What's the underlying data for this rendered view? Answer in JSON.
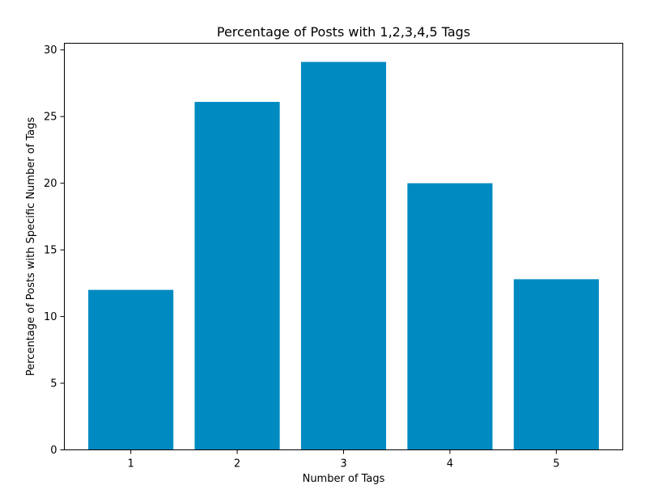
{
  "chart_data": {
    "type": "bar",
    "title": "Percentage of Posts with 1,2,3,4,5 Tags",
    "xlabel": "Number of Tags",
    "ylabel": "Percentage of Posts with Specific Number of Tags",
    "categories": [
      "1",
      "2",
      "3",
      "4",
      "5"
    ],
    "values": [
      12.0,
      26.1,
      29.1,
      20.0,
      12.8
    ],
    "ylim": [
      0,
      30.5
    ],
    "yticks": [
      0,
      5,
      10,
      15,
      20,
      25,
      30
    ],
    "bar_color": "#008ac2",
    "grid": false,
    "legend": "none"
  }
}
